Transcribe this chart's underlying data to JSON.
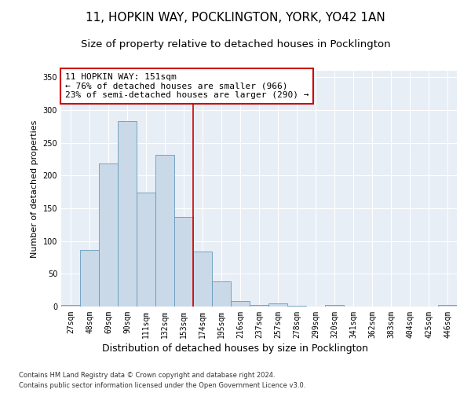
{
  "title1": "11, HOPKIN WAY, POCKLINGTON, YORK, YO42 1AN",
  "title2": "Size of property relative to detached houses in Pocklington",
  "xlabel": "Distribution of detached houses by size in Pocklington",
  "ylabel": "Number of detached properties",
  "categories": [
    "27sqm",
    "48sqm",
    "69sqm",
    "90sqm",
    "111sqm",
    "132sqm",
    "153sqm",
    "174sqm",
    "195sqm",
    "216sqm",
    "237sqm",
    "257sqm",
    "278sqm",
    "299sqm",
    "320sqm",
    "341sqm",
    "362sqm",
    "383sqm",
    "404sqm",
    "425sqm",
    "446sqm"
  ],
  "values": [
    2,
    86,
    218,
    283,
    174,
    232,
    137,
    84,
    39,
    9,
    2,
    5,
    1,
    0,
    2,
    0,
    0,
    0,
    0,
    0,
    2
  ],
  "bar_color": "#c9d9e8",
  "bar_edge_color": "#6699bb",
  "vline_idx": 6,
  "vline_color": "#cc0000",
  "annotation_line1": "11 HOPKIN WAY: 151sqm",
  "annotation_line2": "← 76% of detached houses are smaller (966)",
  "annotation_line3": "23% of semi-detached houses are larger (290) →",
  "annotation_box_color": "#cc0000",
  "ylim": [
    0,
    360
  ],
  "yticks": [
    0,
    50,
    100,
    150,
    200,
    250,
    300,
    350
  ],
  "plot_bg_color": "#e8eef5",
  "footer1": "Contains HM Land Registry data © Crown copyright and database right 2024.",
  "footer2": "Contains public sector information licensed under the Open Government Licence v3.0.",
  "title_fontsize": 11,
  "subtitle_fontsize": 9.5,
  "ylabel_fontsize": 8,
  "xlabel_fontsize": 9,
  "annotation_fontsize": 8,
  "tick_fontsize": 7,
  "footer_fontsize": 6
}
